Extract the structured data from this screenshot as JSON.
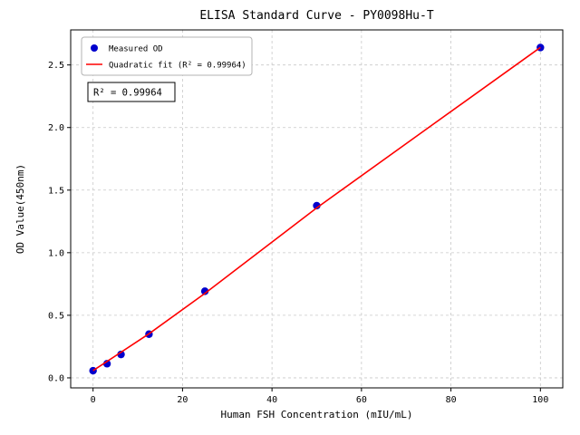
{
  "figure": {
    "background": "#ffffff"
  },
  "chart_data": {
    "type": "scatter",
    "title": "ELISA Standard Curve - PY0098Hu-T",
    "xlabel": "Human FSH Concentration (mIU/mL)",
    "ylabel": "OD Value(450nm)",
    "xlim": [
      -5,
      105
    ],
    "ylim": [
      -0.08,
      2.78
    ],
    "x_ticks": [
      0,
      20,
      40,
      60,
      80,
      100
    ],
    "y_ticks": [
      0.0,
      0.5,
      1.0,
      1.5,
      2.0,
      2.5
    ],
    "grid": true,
    "grid_style": "dashed",
    "grid_color": "#c8c8c8",
    "legend_position": "upper-left",
    "annotation": "R² = 0.99964",
    "series": [
      {
        "name": "Measured OD",
        "kind": "scatter",
        "color": "#0000cd",
        "x": [
          0,
          3.125,
          6.25,
          12.5,
          25,
          50,
          100
        ],
        "y": [
          0.057,
          0.113,
          0.187,
          0.349,
          0.692,
          1.376,
          2.639
        ]
      },
      {
        "name": "Quadratic fit (R² = 0.99964)",
        "kind": "line",
        "color": "#ff0000",
        "x": [
          0,
          12.5,
          25,
          50,
          75,
          100
        ],
        "y": [
          0.058,
          0.352,
          0.675,
          1.358,
          2.0,
          2.64
        ]
      }
    ]
  }
}
